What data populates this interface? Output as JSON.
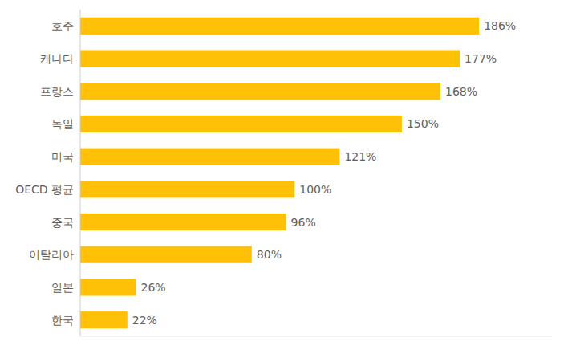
{
  "chart_data": {
    "type": "bar",
    "orientation": "horizontal",
    "categories": [
      "호주",
      "캐나다",
      "프랑스",
      "독일",
      "미국",
      "OECD 평균",
      "중국",
      "이탈리아",
      "일본",
      "한국"
    ],
    "values": [
      186,
      177,
      168,
      150,
      121,
      100,
      96,
      80,
      26,
      22
    ],
    "value_labels": [
      "186%",
      "177%",
      "168%",
      "150%",
      "121%",
      "100%",
      "96%",
      "80%",
      "26%",
      "22%"
    ],
    "color": "#FFC107",
    "xlim": [
      0,
      220
    ],
    "data_labels": true,
    "tick_labels": "y",
    "grid": false
  }
}
